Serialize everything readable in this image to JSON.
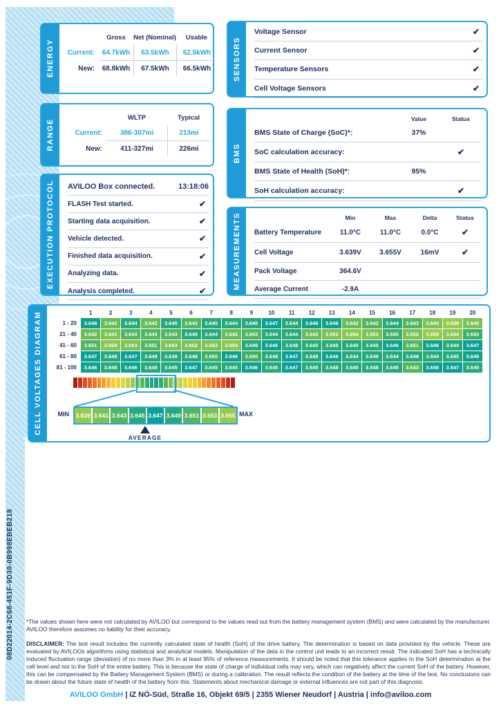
{
  "serial": "08D22014-2C68-451F-9D30-0B998EBEB218",
  "check_glyph": "✔",
  "colors": {
    "accent_blue": "#2aa5e0",
    "tab_blue": "#1f9cd8",
    "navy_text": "#1d2c5e",
    "light_blue": "#b9e0f3"
  },
  "panels": {
    "energy": {
      "title": "ENERGY",
      "col_headers": [
        "Gross",
        "Net (Nominal)",
        "Usable"
      ],
      "rows": [
        {
          "label": "Current:",
          "values": [
            "64.7kWh",
            "63.5kWh",
            "62.5kWh"
          ],
          "highlight": true
        },
        {
          "label": "New:",
          "values": [
            "68.8kWh",
            "67.5kWh",
            "66.5kWh"
          ],
          "highlight": false
        }
      ]
    },
    "range": {
      "title": "RANGE",
      "col_headers": [
        "WLTP",
        "Typical"
      ],
      "rows": [
        {
          "label": "Current:",
          "values": [
            "386-307mi",
            "213mi"
          ],
          "highlight": true
        },
        {
          "label": "New:",
          "values": [
            "411-327mi",
            "226mi"
          ],
          "highlight": false
        }
      ]
    },
    "sensors": {
      "title": "SENSORS",
      "items": [
        "Voltage Sensor",
        "Current Sensor",
        "Temperature Sensors",
        "Cell Voltage Sensors"
      ]
    },
    "bms": {
      "title": "BMS",
      "col_headers": [
        "Value",
        "Status"
      ],
      "rows": [
        {
          "label": "BMS State of Charge (SoC)*:",
          "value": "37%",
          "check": false
        },
        {
          "label": "SoC calculation accuracy:",
          "value": "",
          "check": true
        },
        {
          "label": "BMS State of Health (SoH)*:",
          "value": "95%",
          "check": false
        },
        {
          "label": "SoH calculation accuracy:",
          "value": "",
          "check": true
        }
      ]
    },
    "execution": {
      "title": "EXECUTION PROTOCOL",
      "first": {
        "label": "AVILOO Box connected.",
        "time": "13:18:06"
      },
      "steps": [
        "FLASH Test started.",
        "Starting data acquisition.",
        "Vehicle detected.",
        "Finished data acquisition.",
        "Analyzing data.",
        "Analysis completed."
      ]
    },
    "measurements": {
      "title": "MEASUREMENTS",
      "col_headers": [
        "Min",
        "Max",
        "Delta",
        "Status"
      ],
      "rows": [
        {
          "label": "Battery Temperature",
          "values": [
            "11.0°C",
            "11.0°C",
            "0.0°C"
          ],
          "check": true
        },
        {
          "label": "Cell Voltage",
          "values": [
            "3.639V",
            "3.655V",
            "16mV"
          ],
          "check": true
        },
        {
          "label": "Pack Voltage",
          "values": [
            "364.6V",
            "",
            ""
          ],
          "check": false
        },
        {
          "label": "Average Current",
          "values": [
            "-2.9A",
            "",
            ""
          ],
          "check": false
        }
      ]
    }
  },
  "chart_data": {
    "type": "heatmap",
    "title": "CELL VOLTAGES DIAGRAM",
    "unit": "V",
    "columns": [
      "1",
      "2",
      "3",
      "4",
      "5",
      "6",
      "7",
      "8",
      "9",
      "10",
      "11",
      "12",
      "13",
      "14",
      "15",
      "16",
      "17",
      "18",
      "19",
      "20"
    ],
    "row_labels": [
      "1 - 20",
      "21 - 40",
      "41 - 60",
      "61 - 80",
      "81 - 100"
    ],
    "values": [
      [
        3.646,
        3.642,
        3.644,
        3.642,
        3.645,
        3.643,
        3.645,
        3.644,
        3.645,
        3.647,
        3.644,
        3.646,
        3.646,
        3.642,
        3.643,
        3.644,
        3.643,
        3.64,
        3.639,
        3.64
      ],
      [
        3.642,
        3.641,
        3.643,
        3.643,
        3.643,
        3.645,
        3.644,
        3.642,
        3.643,
        3.644,
        3.644,
        3.642,
        3.652,
        3.654,
        3.653,
        3.65,
        3.652,
        3.655,
        3.654,
        3.65
      ],
      [
        3.651,
        3.654,
        3.653,
        3.651,
        3.653,
        3.652,
        3.653,
        3.654,
        3.649,
        3.646,
        3.648,
        3.645,
        3.645,
        3.649,
        3.645,
        3.646,
        3.651,
        3.646,
        3.644,
        3.647
      ],
      [
        3.647,
        3.648,
        3.647,
        3.649,
        3.649,
        3.648,
        3.65,
        3.646,
        3.65,
        3.648,
        3.647,
        3.648,
        3.646,
        3.644,
        3.649,
        3.644,
        3.648,
        3.644,
        3.645,
        3.646
      ],
      [
        3.646,
        3.648,
        3.646,
        3.649,
        3.645,
        3.647,
        3.645,
        3.645,
        3.646,
        3.645,
        3.647,
        3.645,
        3.648,
        3.645,
        3.648,
        3.645,
        3.643,
        3.646,
        3.647,
        3.645
      ]
    ],
    "scale": {
      "min": 3.639,
      "max": 3.655,
      "average": 3.6465,
      "min_label": "MIN",
      "max_label": "MAX",
      "average_label": "AVERAGE",
      "cells": [
        3.639,
        3.641,
        3.643,
        3.645,
        3.647,
        3.649,
        3.651,
        3.653,
        3.655
      ]
    },
    "value_palette": [
      "#0a9f97",
      "#10a18c",
      "#27aa7b",
      "#3db069",
      "#52b660",
      "#68bc59",
      "#7cc256",
      "#8bc751",
      "#97cb4d",
      "#a0ce4a"
    ],
    "bar_stops": [
      [
        0,
        "#0a9f97"
      ],
      [
        0.1,
        "#2fae71"
      ],
      [
        0.22,
        "#7cc256"
      ],
      [
        0.32,
        "#b8d348"
      ],
      [
        0.42,
        "#e6da39"
      ],
      [
        0.52,
        "#f6ca32"
      ],
      [
        0.64,
        "#f59f2a"
      ],
      [
        0.76,
        "#ee7422"
      ],
      [
        0.88,
        "#e44c1d"
      ],
      [
        1,
        "#b01b15"
      ]
    ],
    "bar_segments": 34
  },
  "footnote": "*The values shown here were not calculated by AVILOO but correspond to the values read out from the battery management system (BMS) and were calculated by the manufacturer. AVILOO therefore assumes no liability for their accuracy.",
  "disclaimer_label": "DISCLAIMER:",
  "disclaimer": " The test result includes the currently calculated state of health (SoH) of the drive battery. The determination is based on data provided by the vehicle. These are evaluated by AVILOOs algorithms using statistical and analytical models. Manipulation of the data in the control unit leads to an incorrect result. The indicated SoH has a technically induced fluctuation range (deviation) of no more than 3% in at least 95% of reference measurements. It should be noted that this tolerance applies to the SoH determination at the cell level and not to the SoH of the entire battery. This is because the state of charge of individual cells may vary, which can negatively affect the current SoH of the battery. However, this can be compensated by the Battery Management System (BMS) or during a calibration. The result reflects the condition of the battery at the time of the test. No conclusions can be drawn about the future state of health of the battery from this. Statements about mechanical damage or external influences are not part of this diagnosis.",
  "footer": {
    "company": "AVILOO GmbH",
    "rest": "  |  IZ NÖ-Süd, Straße 16, Objekt 69/5  |  2355 Wiener Neudorf  |  Austria  |  info@aviloo.com"
  }
}
